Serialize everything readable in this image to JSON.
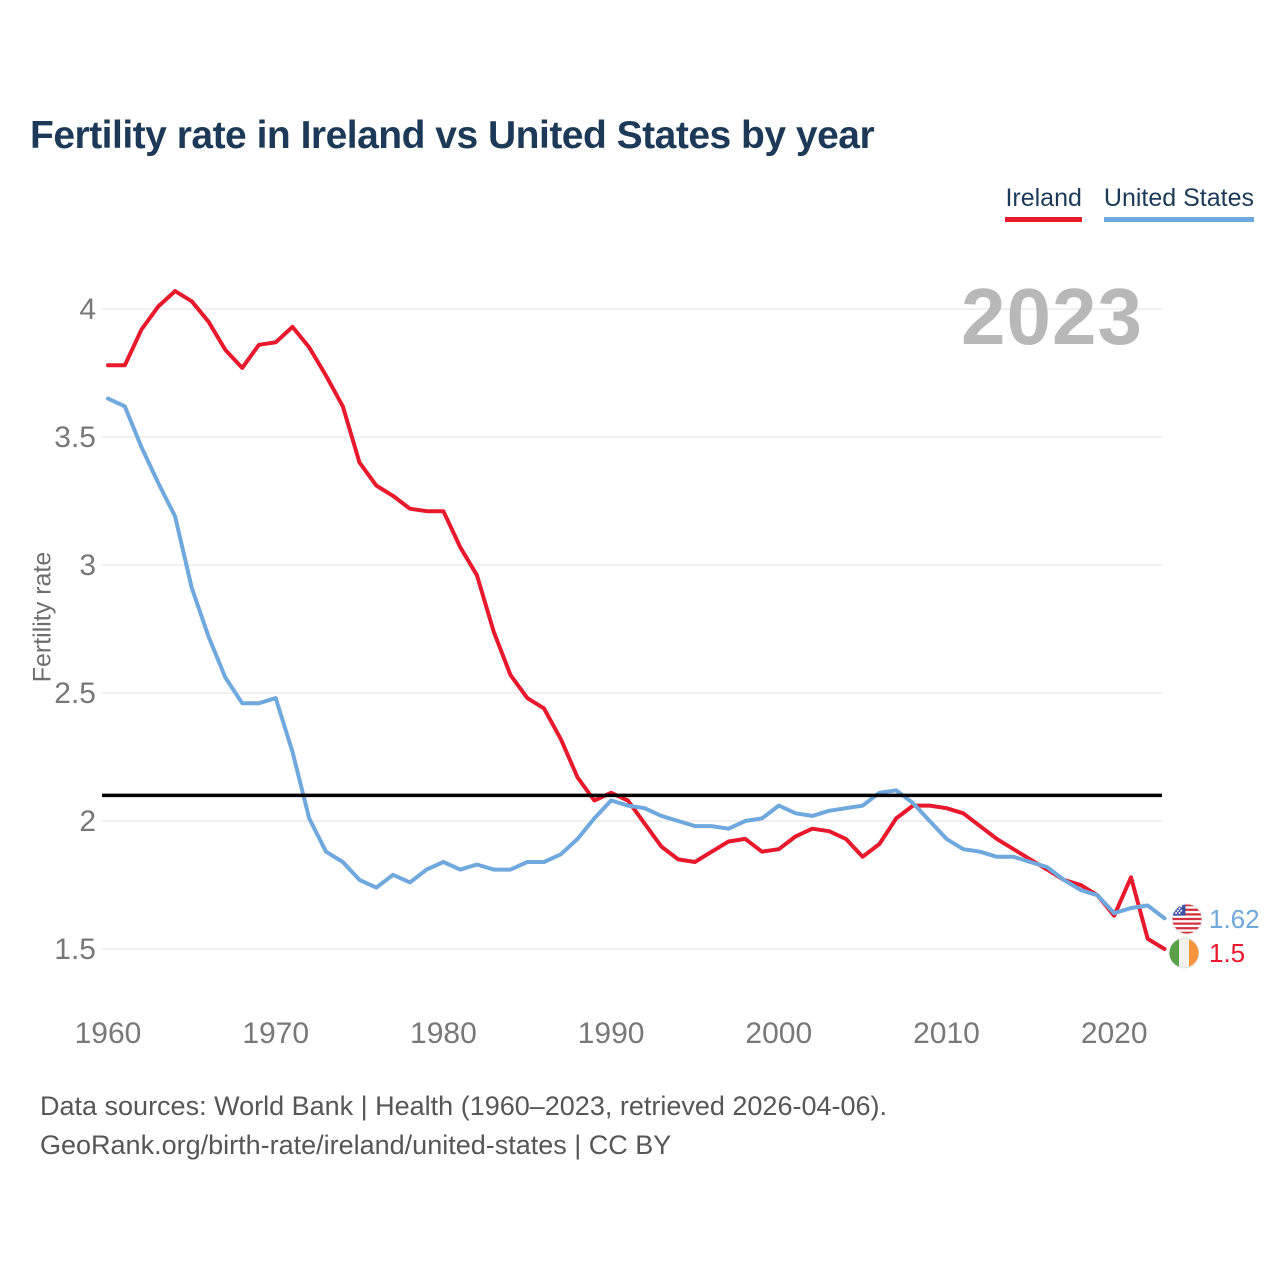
{
  "page": {
    "title": "Fertility rate in Ireland vs United States by year",
    "watermark_year": "2023",
    "footer_line1": "Data sources: World Bank | Health (1960–2023, retrieved 2026-04-06).",
    "footer_line2": "GeoRank.org/birth-rate/ireland/united-states | CC BY"
  },
  "legend": [
    {
      "label": "Ireland",
      "color": "#e8192d"
    },
    {
      "label": "United States",
      "color": "#6fa8dc"
    }
  ],
  "chart_data": {
    "type": "line",
    "title": "Fertility rate in Ireland vs United States by year",
    "xlabel": "",
    "ylabel": "Fertility rate",
    "grid": "horizontal",
    "legend_position": "top-right",
    "x_ticks": [
      1960,
      1970,
      1980,
      1990,
      2000,
      2010,
      2020
    ],
    "y_ticks": [
      1.5,
      2,
      2.5,
      3,
      3.5,
      4
    ],
    "ylim": [
      1.35,
      4.15
    ],
    "reference_line": {
      "value": 2.1,
      "color": "#000000"
    },
    "x": [
      1960,
      1961,
      1962,
      1963,
      1964,
      1965,
      1966,
      1967,
      1968,
      1969,
      1970,
      1971,
      1972,
      1973,
      1974,
      1975,
      1976,
      1977,
      1978,
      1979,
      1980,
      1981,
      1982,
      1983,
      1984,
      1985,
      1986,
      1987,
      1988,
      1989,
      1990,
      1991,
      1992,
      1993,
      1994,
      1995,
      1996,
      1997,
      1998,
      1999,
      2000,
      2001,
      2002,
      2003,
      2004,
      2005,
      2006,
      2007,
      2008,
      2009,
      2010,
      2011,
      2012,
      2013,
      2014,
      2015,
      2016,
      2017,
      2018,
      2019,
      2020,
      2021,
      2022,
      2023
    ],
    "series": [
      {
        "name": "Ireland",
        "color": "#e8192d",
        "end_label": "1.5",
        "flag": "ireland-flag",
        "values": [
          3.78,
          3.78,
          3.92,
          4.01,
          4.07,
          4.03,
          3.95,
          3.84,
          3.77,
          3.86,
          3.87,
          3.93,
          3.85,
          3.74,
          3.62,
          3.4,
          3.31,
          3.27,
          3.22,
          3.21,
          3.21,
          3.07,
          2.96,
          2.74,
          2.57,
          2.48,
          2.44,
          2.32,
          2.17,
          2.08,
          2.11,
          2.08,
          1.99,
          1.9,
          1.85,
          1.84,
          1.88,
          1.92,
          1.93,
          1.88,
          1.89,
          1.94,
          1.97,
          1.96,
          1.93,
          1.86,
          1.91,
          2.01,
          2.06,
          2.06,
          2.05,
          2.03,
          1.98,
          1.93,
          1.89,
          1.85,
          1.81,
          1.77,
          1.75,
          1.71,
          1.63,
          1.78,
          1.54,
          1.5
        ]
      },
      {
        "name": "United States",
        "color": "#6fa8dc",
        "end_label": "1.62",
        "flag": "us-flag",
        "values": [
          3.65,
          3.62,
          3.46,
          3.32,
          3.19,
          2.91,
          2.72,
          2.56,
          2.46,
          2.46,
          2.48,
          2.27,
          2.01,
          1.88,
          1.84,
          1.77,
          1.74,
          1.79,
          1.76,
          1.81,
          1.84,
          1.81,
          1.83,
          1.81,
          1.81,
          1.84,
          1.84,
          1.87,
          1.93,
          2.01,
          2.08,
          2.06,
          2.05,
          2.02,
          2.0,
          1.98,
          1.98,
          1.97,
          2.0,
          2.01,
          2.06,
          2.03,
          2.02,
          2.04,
          2.05,
          2.06,
          2.11,
          2.12,
          2.07,
          2.0,
          1.93,
          1.89,
          1.88,
          1.86,
          1.86,
          1.84,
          1.82,
          1.77,
          1.73,
          1.71,
          1.64,
          1.66,
          1.67,
          1.62
        ]
      }
    ]
  }
}
